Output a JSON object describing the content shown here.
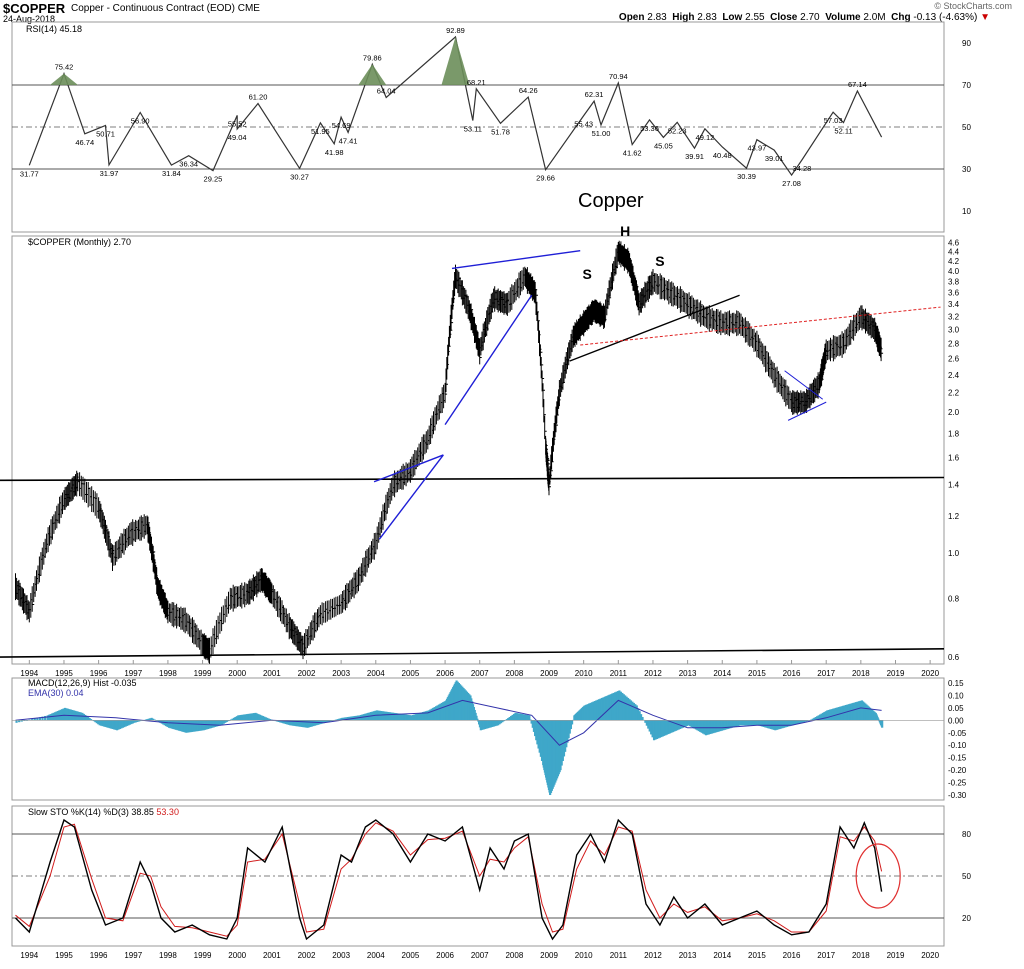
{
  "header": {
    "symbol": "$COPPER",
    "description": "Copper - Continuous Contract (EOD) CME",
    "date": "24-Aug-2018",
    "watermark": "© StockCharts.com",
    "open_label": "Open",
    "open": "2.83",
    "high_label": "High",
    "high": "2.83",
    "low_label": "Low",
    "low": "2.55",
    "close_label": "Close",
    "close": "2.70",
    "volume_label": "Volume",
    "volume": "2.0M",
    "chg_label": "Chg",
    "chg": "-0.13 (-4.63%)",
    "down_arrow": "▼"
  },
  "colors": {
    "price": "#000000",
    "rsi_fill": "#6b8e5a",
    "macd_hist": "#3fa7c9",
    "macd_line": "#000000",
    "ema_line": "#3333aa",
    "sto_k": "#000000",
    "sto_d": "#d11b1b",
    "trend_blue": "#1f1fd6",
    "trend_red": "#e02020",
    "circle": "#e03030"
  },
  "chart_data": [
    {
      "type": "line",
      "panel": "rsi",
      "legend": "RSI(14) 45.18",
      "ylim": [
        0,
        100
      ],
      "y_ticks": [
        10,
        30,
        50,
        70,
        90
      ],
      "guides": [
        30,
        50,
        70
      ],
      "annotations": [
        {
          "date": 1994.0,
          "value": 31.77,
          "label": "31.77"
        },
        {
          "date": 1995.0,
          "value": 75.42,
          "label": "75.42"
        },
        {
          "date": 1995.6,
          "value": 46.74,
          "label": "46.74"
        },
        {
          "date": 1996.2,
          "value": 50.71,
          "label": "50.71"
        },
        {
          "date": 1996.3,
          "value": 31.97,
          "label": "31.97"
        },
        {
          "date": 1997.2,
          "value": 56.9,
          "label": "56.90"
        },
        {
          "date": 1998.1,
          "value": 31.84,
          "label": "31.84"
        },
        {
          "date": 1998.6,
          "value": 36.34,
          "label": "36.34"
        },
        {
          "date": 1999.3,
          "value": 29.25,
          "label": "29.25"
        },
        {
          "date": 2000.0,
          "value": 55.52,
          "label": "55.52"
        },
        {
          "date": 2000.0,
          "value": 49.04,
          "label": "49.04"
        },
        {
          "date": 2000.6,
          "value": 61.2,
          "label": "61.20"
        },
        {
          "date": 2001.8,
          "value": 30.27,
          "label": "30.27"
        },
        {
          "date": 2002.4,
          "value": 51.95,
          "label": "51.95"
        },
        {
          "date": 2002.8,
          "value": 41.98,
          "label": "41.98"
        },
        {
          "date": 2003.0,
          "value": 54.69,
          "label": "54.69"
        },
        {
          "date": 2003.2,
          "value": 47.41,
          "label": "47.41"
        },
        {
          "date": 2003.9,
          "value": 79.86,
          "label": "79.86"
        },
        {
          "date": 2004.3,
          "value": 64.04,
          "label": "64.04"
        },
        {
          "date": 2006.3,
          "value": 92.89,
          "label": "92.89"
        },
        {
          "date": 2006.9,
          "value": 68.21,
          "label": "68.21"
        },
        {
          "date": 2006.8,
          "value": 53.11,
          "label": "53.11"
        },
        {
          "date": 2007.6,
          "value": 51.78,
          "label": "51.78"
        },
        {
          "date": 2008.4,
          "value": 64.26,
          "label": "64.26"
        },
        {
          "date": 2008.9,
          "value": 29.66,
          "label": "29.66"
        },
        {
          "date": 2010.3,
          "value": 62.31,
          "label": "62.31"
        },
        {
          "date": 2010.0,
          "value": 55.43,
          "label": "55.43"
        },
        {
          "date": 2010.5,
          "value": 51.0,
          "label": "51.00"
        },
        {
          "date": 2011.0,
          "value": 70.94,
          "label": "70.94"
        },
        {
          "date": 2011.4,
          "value": 41.62,
          "label": "41.62"
        },
        {
          "date": 2011.9,
          "value": 53.36,
          "label": "53.36"
        },
        {
          "date": 2012.3,
          "value": 45.05,
          "label": "45.05"
        },
        {
          "date": 2012.7,
          "value": 52.23,
          "label": "52.23"
        },
        {
          "date": 2013.2,
          "value": 39.91,
          "label": "39.91"
        },
        {
          "date": 2013.5,
          "value": 49.12,
          "label": "49.12"
        },
        {
          "date": 2014.0,
          "value": 40.48,
          "label": "40.48"
        },
        {
          "date": 2014.7,
          "value": 30.39,
          "label": "30.39"
        },
        {
          "date": 2015.0,
          "value": 43.97,
          "label": "43.97"
        },
        {
          "date": 2015.5,
          "value": 39.01,
          "label": "39.01"
        },
        {
          "date": 2016.0,
          "value": 27.08,
          "label": "27.08"
        },
        {
          "date": 2016.3,
          "value": 34.28,
          "label": "34.28"
        },
        {
          "date": 2017.2,
          "value": 57.03,
          "label": "57.03"
        },
        {
          "date": 2017.5,
          "value": 52.11,
          "label": "52.11"
        },
        {
          "date": 2017.9,
          "value": 67.14,
          "label": "67.14"
        }
      ]
    },
    {
      "type": "bar",
      "panel": "price",
      "title": "Copper",
      "legend": "$COPPER (Monthly) 2.70",
      "scale": "log",
      "ylim": [
        0.58,
        4.75
      ],
      "y_ticks": [
        "0.6",
        "0.8",
        "1.0",
        "1.2",
        "1.4",
        "1.6",
        "1.8",
        "2.0",
        "2.2",
        "2.4",
        "2.6",
        "2.8",
        "3.0",
        "3.2",
        "3.4",
        "3.6",
        "3.8",
        "4.0",
        "4.2",
        "4.4",
        "4.6"
      ],
      "x_ticks": [
        "1994",
        "1995",
        "1996",
        "1997",
        "1998",
        "1999",
        "2000",
        "2001",
        "2002",
        "2003",
        "2004",
        "2005",
        "2006",
        "2007",
        "2008",
        "2009",
        "2010",
        "2011",
        "2012",
        "2013",
        "2014",
        "2015",
        "2016",
        "2017",
        "2018",
        "2019",
        "2020"
      ],
      "series": [
        {
          "x": [
            1993.6,
            1994.0,
            1994.5,
            1995.0,
            1995.4,
            1996.0,
            1996.4,
            1996.9,
            1997.4,
            1997.7,
            1998.0,
            1998.5,
            1999.0,
            1999.2,
            1999.8,
            2000.3,
            2000.7,
            2001.0,
            2001.5,
            2001.9,
            2002.4,
            2003.0,
            2003.5,
            2004.0,
            2004.5,
            2005.0,
            2005.5,
            2006.0,
            2006.3,
            2006.7,
            2007.0,
            2007.4,
            2007.8,
            2008.3,
            2008.6,
            2008.9,
            2009.0,
            2009.3,
            2009.7,
            2010.0,
            2010.3,
            2010.6,
            2011.0,
            2011.3,
            2011.6,
            2012.0,
            2012.5,
            2013.0,
            2013.5,
            2014.0,
            2014.5,
            2015.0,
            2015.5,
            2016.0,
            2016.4,
            2016.8,
            2017.0,
            2017.5,
            2018.0,
            2018.4,
            2018.6
          ],
          "y": [
            0.85,
            0.75,
            1.05,
            1.3,
            1.42,
            1.25,
            0.98,
            1.1,
            1.15,
            0.85,
            0.75,
            0.72,
            0.64,
            0.62,
            0.8,
            0.82,
            0.88,
            0.82,
            0.7,
            0.63,
            0.74,
            0.78,
            0.88,
            1.05,
            1.4,
            1.5,
            1.75,
            2.2,
            3.9,
            3.3,
            2.7,
            3.5,
            3.4,
            3.9,
            3.6,
            1.7,
            1.4,
            2.2,
            2.9,
            3.1,
            3.3,
            3.2,
            4.4,
            4.2,
            3.4,
            3.8,
            3.6,
            3.4,
            3.2,
            3.1,
            3.1,
            2.8,
            2.4,
            2.1,
            2.1,
            2.3,
            2.7,
            2.8,
            3.2,
            3.0,
            2.7
          ]
        }
      ],
      "annotations": [
        {
          "label": "S",
          "date": 2010.1,
          "value": 3.85
        },
        {
          "label": "H",
          "date": 2011.2,
          "value": 4.75
        },
        {
          "label": "S",
          "date": 2012.2,
          "value": 4.1
        }
      ]
    },
    {
      "type": "bar",
      "panel": "macd",
      "legend_macd": "MACD(12,26,9) Hist -0.035",
      "legend_ema": "EMA(30) 0.04",
      "ylim": [
        -0.32,
        0.17
      ],
      "y_ticks": [
        "0.15",
        "0.10",
        "0.05",
        "0.00",
        "-0.05",
        "-0.10",
        "-0.15",
        "-0.20",
        "-0.25",
        "-0.30"
      ],
      "series": [
        {
          "name": "MACD",
          "x": [
            1993.6,
            1994.5,
            1995.0,
            1995.5,
            1996.0,
            1996.5,
            1997.0,
            1997.5,
            1998.0,
            1998.5,
            1999.0,
            1999.5,
            2000.0,
            2000.5,
            2001.0,
            2001.5,
            2002.0,
            2002.5,
            2003.0,
            2003.5,
            2004.0,
            2004.5,
            2005.0,
            2005.5,
            2006.0,
            2006.3,
            2006.7,
            2007.0,
            2007.5,
            2008.0,
            2008.4,
            2008.8,
            2009.0,
            2009.3,
            2009.7,
            2010.0,
            2010.5,
            2011.0,
            2011.5,
            2012.0,
            2012.5,
            2013.0,
            2013.5,
            2014.0,
            2014.5,
            2015.0,
            2015.5,
            2016.0,
            2016.5,
            2017.0,
            2017.5,
            2018.0,
            2018.4,
            2018.6
          ],
          "y": [
            -0.01,
            0.02,
            0.05,
            0.03,
            -0.02,
            -0.04,
            -0.01,
            0.01,
            -0.03,
            -0.05,
            -0.04,
            -0.02,
            0.02,
            0.03,
            0.0,
            -0.02,
            -0.03,
            -0.01,
            0.01,
            0.02,
            0.04,
            0.03,
            0.02,
            0.04,
            0.08,
            0.16,
            0.1,
            -0.04,
            -0.02,
            0.03,
            0.02,
            -0.18,
            -0.3,
            -0.2,
            0.02,
            0.06,
            0.09,
            0.12,
            0.06,
            -0.08,
            -0.05,
            -0.02,
            -0.06,
            -0.04,
            -0.02,
            -0.02,
            -0.04,
            -0.02,
            0.0,
            0.04,
            0.06,
            0.08,
            0.03,
            -0.035
          ]
        },
        {
          "name": "EMA(30)",
          "x": [
            1993.6,
            1995.0,
            1996.5,
            1998.0,
            1999.5,
            2001.0,
            2002.5,
            2004.0,
            2005.5,
            2006.5,
            2007.5,
            2008.5,
            2009.3,
            2010.0,
            2011.0,
            2012.0,
            2013.0,
            2014.0,
            2015.0,
            2016.0,
            2017.0,
            2018.0,
            2018.6
          ],
          "y": [
            0.0,
            0.02,
            0.01,
            -0.01,
            -0.02,
            0.0,
            -0.01,
            0.02,
            0.03,
            0.08,
            0.05,
            0.02,
            -0.1,
            -0.05,
            0.08,
            0.02,
            -0.03,
            -0.03,
            -0.02,
            -0.02,
            0.01,
            0.05,
            0.04
          ]
        }
      ]
    },
    {
      "type": "line",
      "panel": "stochastic",
      "legend": "Slow STO %K(14) %D(3)",
      "legend_k": "38.85",
      "legend_d": "53.30",
      "ylim": [
        0,
        100
      ],
      "y_ticks": [
        "20",
        "50",
        "80"
      ],
      "guides": [
        20,
        50,
        80
      ],
      "series": [
        {
          "name": "%K",
          "x": [
            1993.6,
            1994.0,
            1994.6,
            1995.0,
            1995.3,
            1995.8,
            1996.2,
            1996.7,
            1997.2,
            1997.5,
            1997.8,
            1998.2,
            1998.7,
            1999.2,
            1999.7,
            2000.0,
            2000.3,
            2000.8,
            2001.3,
            2001.8,
            2002.0,
            2002.5,
            2003.0,
            2003.3,
            2003.7,
            2004.0,
            2004.5,
            2005.0,
            2005.5,
            2006.0,
            2006.5,
            2007.0,
            2007.3,
            2007.7,
            2008.0,
            2008.4,
            2008.8,
            2009.1,
            2009.4,
            2009.8,
            2010.2,
            2010.6,
            2011.0,
            2011.4,
            2011.8,
            2012.2,
            2012.6,
            2013.0,
            2013.5,
            2014.0,
            2014.5,
            2015.0,
            2015.5,
            2016.0,
            2016.5,
            2017.0,
            2017.4,
            2017.8,
            2018.1,
            2018.4,
            2018.6
          ],
          "y": [
            20,
            10,
            60,
            90,
            85,
            40,
            15,
            20,
            60,
            45,
            20,
            10,
            15,
            8,
            5,
            20,
            70,
            60,
            85,
            20,
            5,
            15,
            65,
            60,
            85,
            90,
            80,
            60,
            80,
            75,
            85,
            40,
            70,
            55,
            75,
            80,
            20,
            5,
            15,
            65,
            80,
            60,
            90,
            80,
            30,
            15,
            35,
            20,
            30,
            15,
            20,
            25,
            15,
            8,
            10,
            30,
            85,
            70,
            88,
            70,
            38.85
          ]
        },
        {
          "name": "%D",
          "x": [
            1993.6,
            1994.0,
            1994.6,
            1995.0,
            1995.3,
            1995.8,
            1996.2,
            1996.7,
            1997.2,
            1997.5,
            1997.8,
            1998.2,
            1998.7,
            1999.2,
            1999.7,
            2000.0,
            2000.3,
            2000.8,
            2001.3,
            2001.8,
            2002.0,
            2002.5,
            2003.0,
            2003.3,
            2003.7,
            2004.0,
            2004.5,
            2005.0,
            2005.5,
            2006.0,
            2006.5,
            2007.0,
            2007.3,
            2007.7,
            2008.0,
            2008.4,
            2008.8,
            2009.1,
            2009.4,
            2009.8,
            2010.2,
            2010.6,
            2011.0,
            2011.4,
            2011.8,
            2012.2,
            2012.6,
            2013.0,
            2013.5,
            2014.0,
            2014.5,
            2015.0,
            2015.5,
            2016.0,
            2016.5,
            2017.0,
            2017.4,
            2017.8,
            2018.1,
            2018.4,
            2018.6
          ],
          "y": [
            22,
            14,
            50,
            85,
            87,
            48,
            20,
            18,
            52,
            50,
            28,
            14,
            13,
            10,
            7,
            15,
            60,
            62,
            80,
            30,
            10,
            12,
            55,
            62,
            80,
            88,
            82,
            65,
            76,
            77,
            82,
            50,
            62,
            60,
            70,
            78,
            30,
            10,
            12,
            55,
            75,
            65,
            85,
            82,
            40,
            20,
            30,
            24,
            28,
            18,
            20,
            23,
            18,
            10,
            10,
            25,
            78,
            75,
            85,
            75,
            53.3
          ]
        }
      ]
    }
  ]
}
